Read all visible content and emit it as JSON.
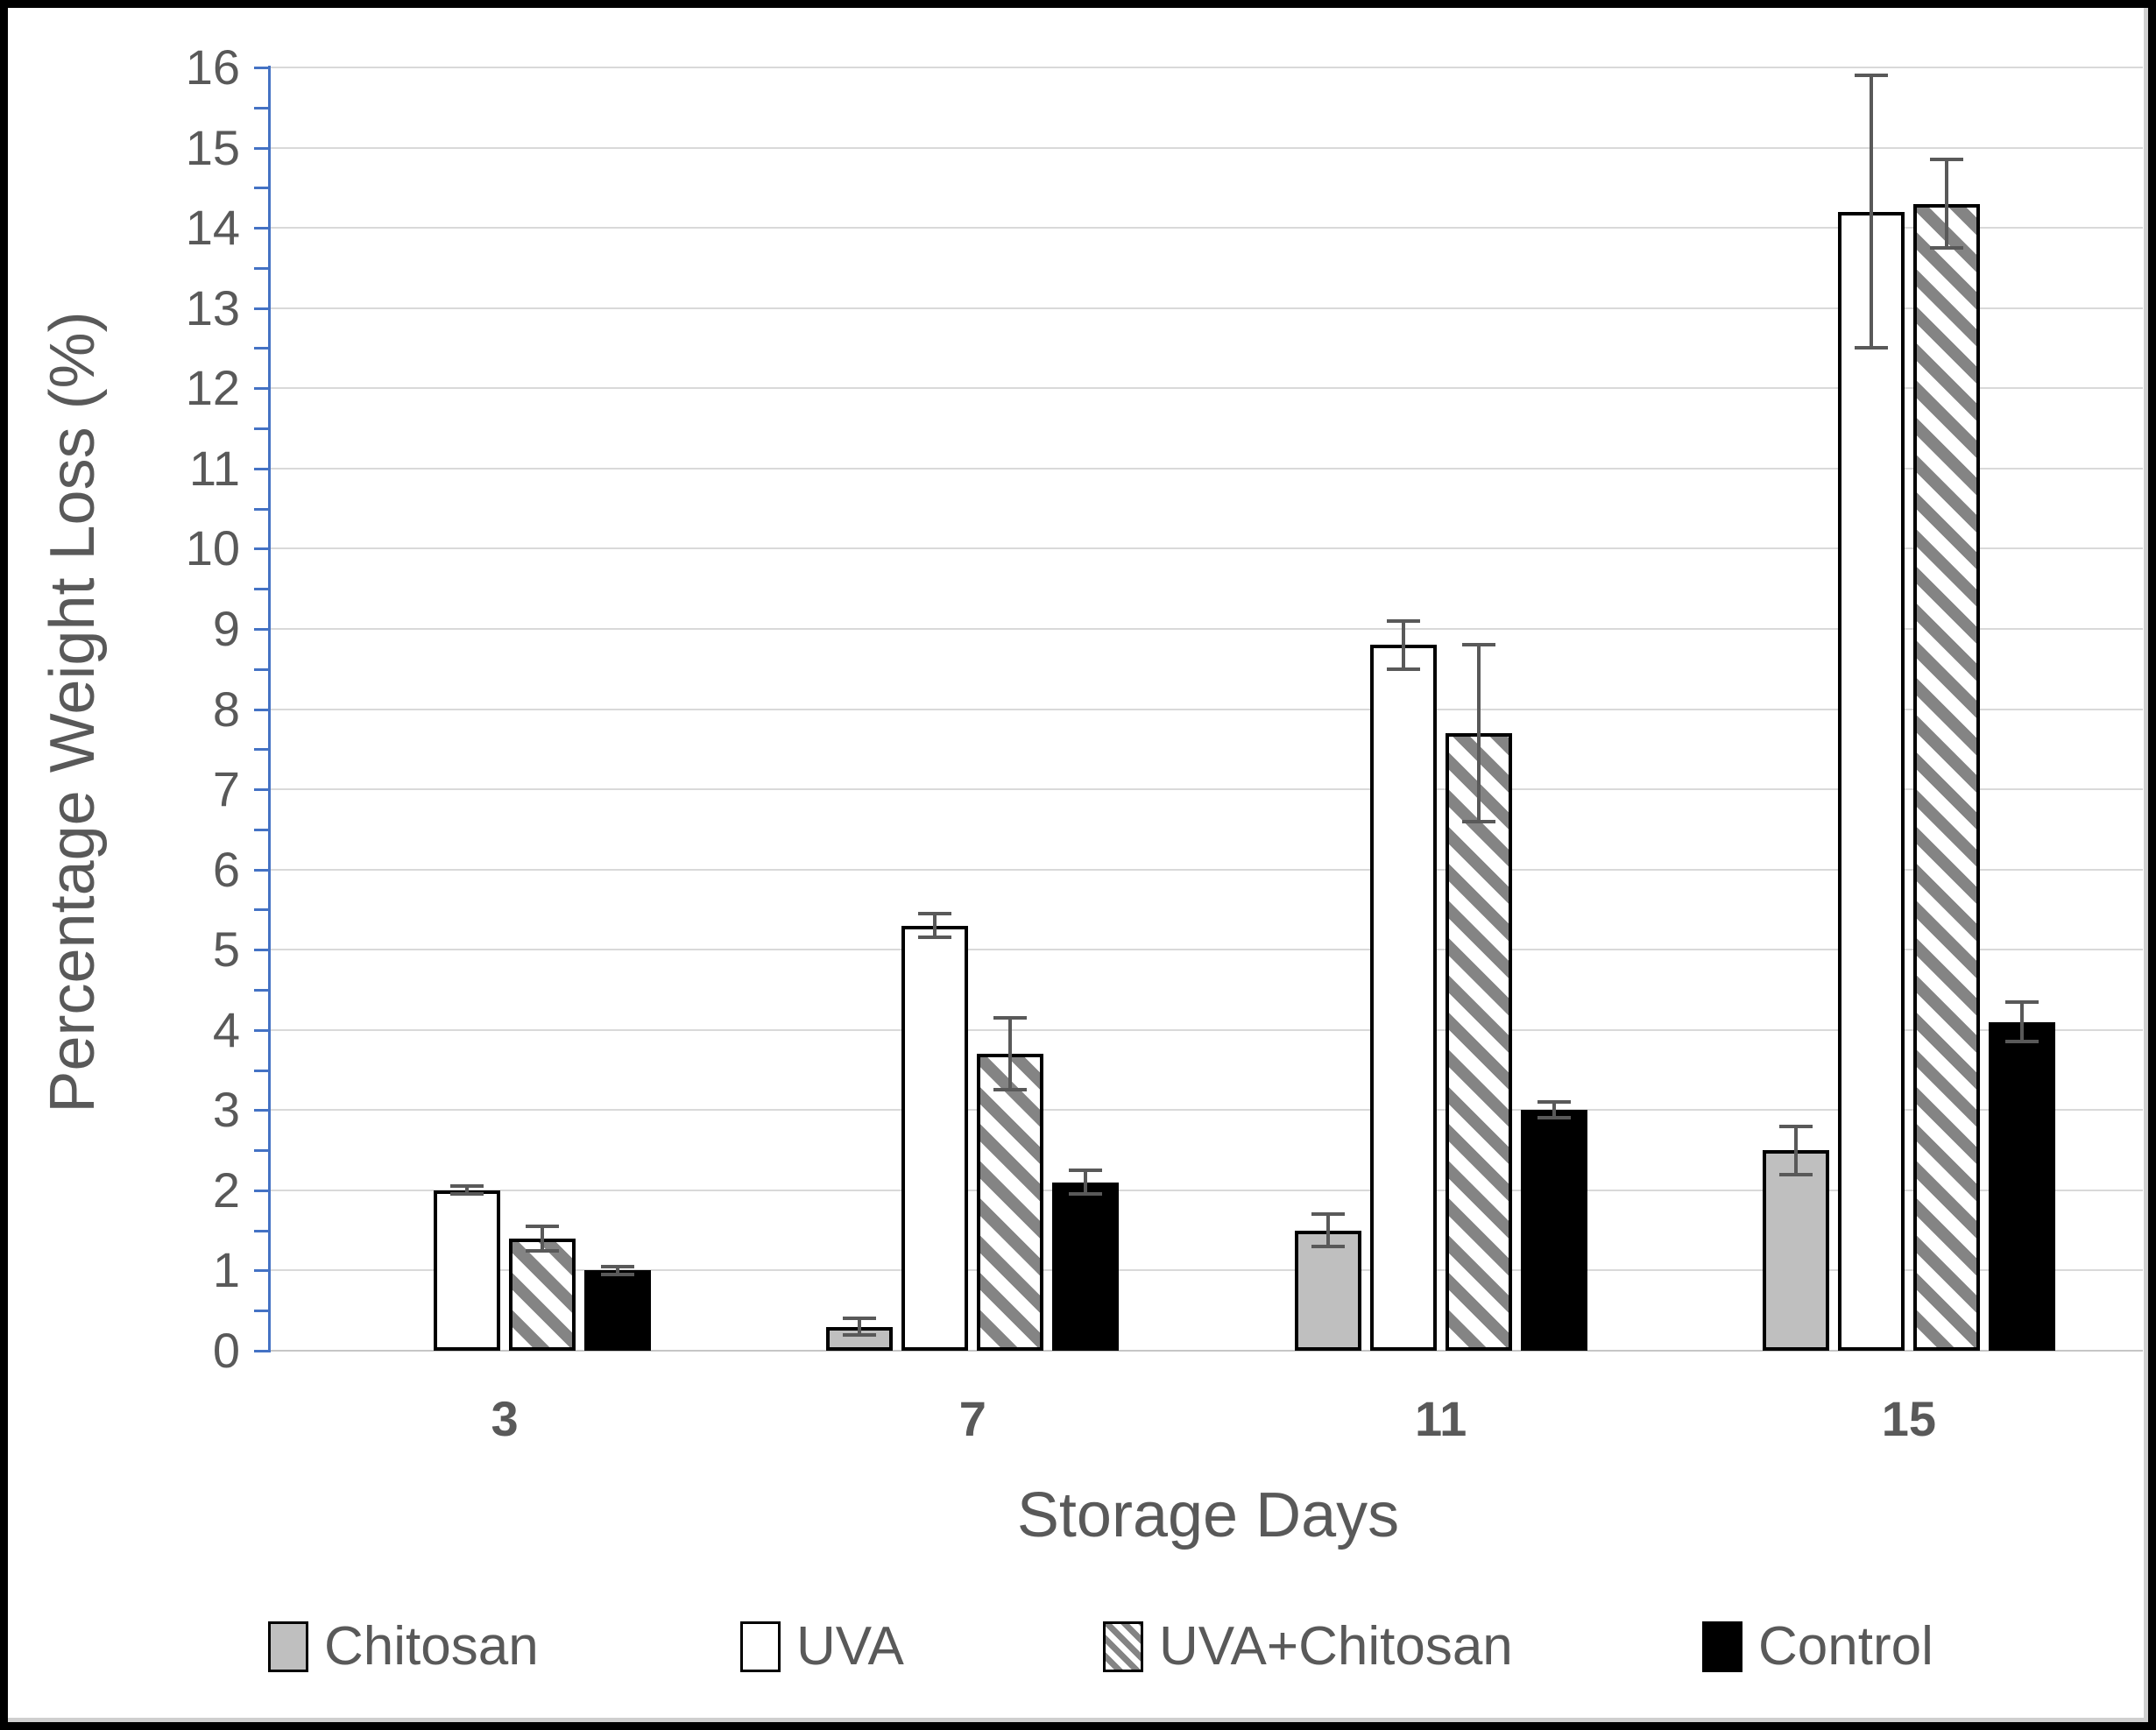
{
  "chart_data": {
    "type": "bar",
    "title": "",
    "xlabel": "Storage Days",
    "ylabel": "Percentage Weight Loss (%)",
    "ylim": [
      0,
      16
    ],
    "ytick_step": 1,
    "yticks": [
      0,
      1,
      2,
      3,
      4,
      5,
      6,
      7,
      8,
      9,
      10,
      11,
      12,
      13,
      14,
      15,
      16
    ],
    "minor_tick_step": 0.5,
    "grid": true,
    "legend_position": "bottom",
    "categories": [
      "3",
      "7",
      "11",
      "15"
    ],
    "series": [
      {
        "name": "Chitosan",
        "pattern": "solid",
        "fill": "#bfbfbf",
        "border": "#000000",
        "values": [
          0,
          0.3,
          1.5,
          2.5
        ],
        "errors": [
          0,
          0.1,
          0.2,
          0.3
        ]
      },
      {
        "name": "UVA",
        "pattern": "solid",
        "fill": "#ffffff",
        "border": "#000000",
        "values": [
          2.0,
          5.3,
          8.8,
          14.2
        ],
        "errors": [
          0.05,
          0.15,
          0.3,
          1.7
        ]
      },
      {
        "name": "UVA+Chitosan",
        "pattern": "hatch",
        "fill": "#ffffff",
        "border": "#000000",
        "stripe_color": "#848484",
        "values": [
          1.4,
          3.7,
          7.7,
          14.3
        ],
        "errors": [
          0.15,
          0.45,
          1.1,
          0.55
        ]
      },
      {
        "name": "Control",
        "pattern": "solid",
        "fill": "#000000",
        "border": "#000000",
        "values": [
          1.0,
          2.1,
          3.0,
          4.1
        ],
        "errors": [
          0.05,
          0.15,
          0.1,
          0.25
        ]
      }
    ],
    "colors": {
      "axis_line": "#4472c4",
      "gridline": "#d9d9d9",
      "text": "#595959",
      "error_bar": "#595959"
    }
  }
}
